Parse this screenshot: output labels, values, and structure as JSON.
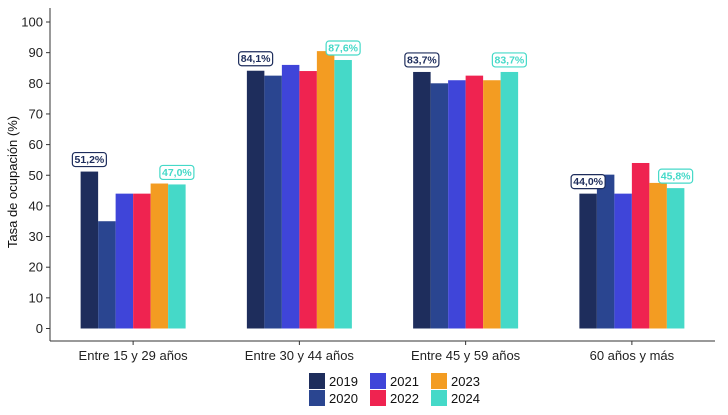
{
  "chart_data": {
    "type": "bar",
    "ylabel": "Tasa de ocupación (%)",
    "xlabel": "",
    "ylim": [
      0,
      100
    ],
    "yticks": [
      0,
      10,
      20,
      30,
      40,
      50,
      60,
      70,
      80,
      90,
      100
    ],
    "grid": false,
    "legend_position": "bottom",
    "categories": [
      "Entre 15 y 29 años",
      "Entre 30 y 44 años",
      "Entre 45 y 59 años",
      "60 años y más"
    ],
    "series": [
      {
        "name": "2019",
        "color": "#1e2d5c",
        "values": [
          51.2,
          84.1,
          83.7,
          44.0
        ]
      },
      {
        "name": "2020",
        "color": "#2a4590",
        "values": [
          35.0,
          82.5,
          80.0,
          50.2
        ]
      },
      {
        "name": "2021",
        "color": "#3f45d9",
        "values": [
          44.0,
          86.0,
          81.0,
          44.0
        ]
      },
      {
        "name": "2022",
        "color": "#ef2350",
        "values": [
          44.0,
          84.0,
          82.5,
          54.0
        ]
      },
      {
        "name": "2023",
        "color": "#f39c22",
        "values": [
          47.3,
          90.5,
          81.0,
          47.5
        ]
      },
      {
        "name": "2024",
        "color": "#45d9c8",
        "values": [
          47.0,
          87.6,
          83.7,
          45.8
        ]
      }
    ],
    "data_labels": [
      {
        "category": 0,
        "series": 0,
        "text": "51,2%"
      },
      {
        "category": 0,
        "series": 5,
        "text": "47,0%"
      },
      {
        "category": 1,
        "series": 0,
        "text": "84,1%"
      },
      {
        "category": 1,
        "series": 5,
        "text": "87,6%"
      },
      {
        "category": 2,
        "series": 0,
        "text": "83,7%"
      },
      {
        "category": 2,
        "series": 5,
        "text": "83,7%"
      },
      {
        "category": 3,
        "series": 0,
        "text": "44,0%"
      },
      {
        "category": 3,
        "series": 5,
        "text": "45,8%"
      }
    ]
  }
}
